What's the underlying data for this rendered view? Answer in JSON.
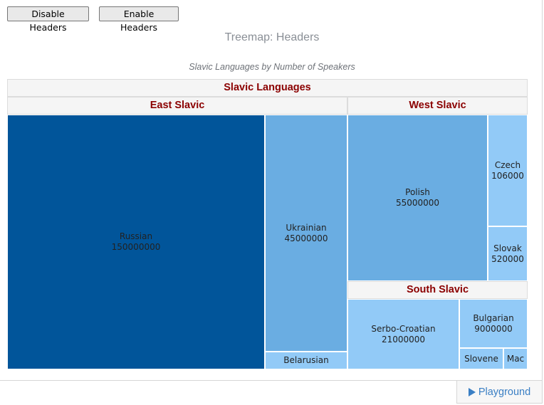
{
  "toolbar": {
    "disable_headers_label": "Disable Headers",
    "enable_headers_label": "Enable Headers"
  },
  "chart_data": {
    "type": "treemap",
    "title": "Treemap: Headers",
    "subtitle": "Slavic Languages by Number of Speakers",
    "root": "Slavic Languages",
    "groups": [
      {
        "name": "East Slavic",
        "items": [
          {
            "name": "Russian",
            "value": 150000000
          },
          {
            "name": "Ukrainian",
            "value": 45000000
          },
          {
            "name": "Belarusian",
            "value": null
          }
        ]
      },
      {
        "name": "West Slavic",
        "items": [
          {
            "name": "Polish",
            "value": 55000000
          },
          {
            "name": "Czech",
            "value": 106000
          },
          {
            "name": "Slovak",
            "value": 520000
          }
        ]
      },
      {
        "name": "South Slavic",
        "items": [
          {
            "name": "Serbo-Croatian",
            "value": 21000000
          },
          {
            "name": "Bulgarian",
            "value": 9000000
          },
          {
            "name": "Slovene",
            "value": null
          },
          {
            "name": "Mac",
            "value": null
          }
        ]
      }
    ],
    "colors": {
      "dark": "#01559a",
      "medium": "#6aade2",
      "light": "#92caf7",
      "header_text": "#8b0000",
      "header_bg": "#f5f5f5"
    }
  },
  "footer": {
    "playground_label": "Playground"
  }
}
